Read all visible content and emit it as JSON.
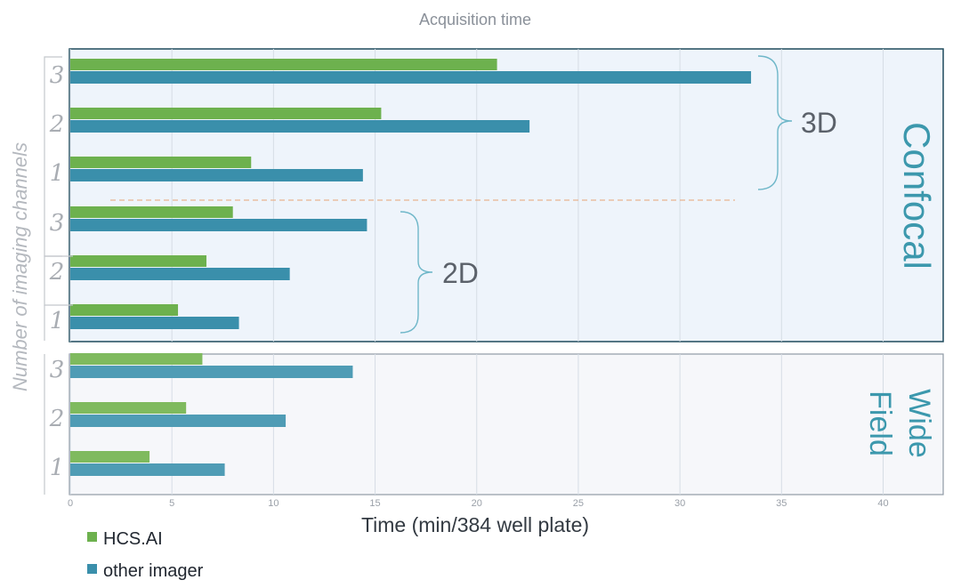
{
  "chart_data": {
    "type": "bar",
    "orientation": "horizontal",
    "title": "Acquisition time",
    "xlabel": "Time (min/384 well plate)",
    "ylabel": "Number of imaging channels",
    "xlim": [
      0,
      43
    ],
    "xticks": [
      "0",
      "5",
      "10",
      "15",
      "20",
      "25",
      "30",
      "35",
      "40"
    ],
    "grid": true,
    "legend_position": "bottom-left",
    "panels": [
      {
        "name": "Confocal",
        "groups": [
          {
            "label": "3D",
            "rows": [
              {
                "channels": "3",
                "hcs": 21.0,
                "other": 33.5
              },
              {
                "channels": "2",
                "hcs": 15.3,
                "other": 22.6
              },
              {
                "channels": "1",
                "hcs": 8.9,
                "other": 14.4
              }
            ]
          },
          {
            "label": "2D",
            "rows": [
              {
                "channels": "3",
                "hcs": 8.0,
                "other": 14.6
              },
              {
                "channels": "2",
                "hcs": 6.7,
                "other": 10.8
              },
              {
                "channels": "1",
                "hcs": 5.3,
                "other": 8.3
              }
            ]
          }
        ]
      },
      {
        "name_lines": [
          "Wide",
          "Field"
        ],
        "rows": [
          {
            "channels": "3",
            "hcs": 6.5,
            "other": 13.9
          },
          {
            "channels": "2",
            "hcs": 5.7,
            "other": 10.6
          },
          {
            "channels": "1",
            "hcs": 3.9,
            "other": 7.6
          }
        ]
      }
    ],
    "series": [
      {
        "name": "HCS.AI",
        "color": "#6db14e",
        "color_light": "#7fba5e"
      },
      {
        "name": "other imager",
        "color": "#3a8fab",
        "color_light": "#4f9cb5"
      }
    ]
  },
  "colors": {
    "confocal_bg": "#eef4fb",
    "widefield_bg": "#f6f7fa",
    "panel_border": "#1f4a5c",
    "grid": "#d6dde5",
    "brace": "#6fb7c9",
    "separator": "#e8b48f"
  }
}
